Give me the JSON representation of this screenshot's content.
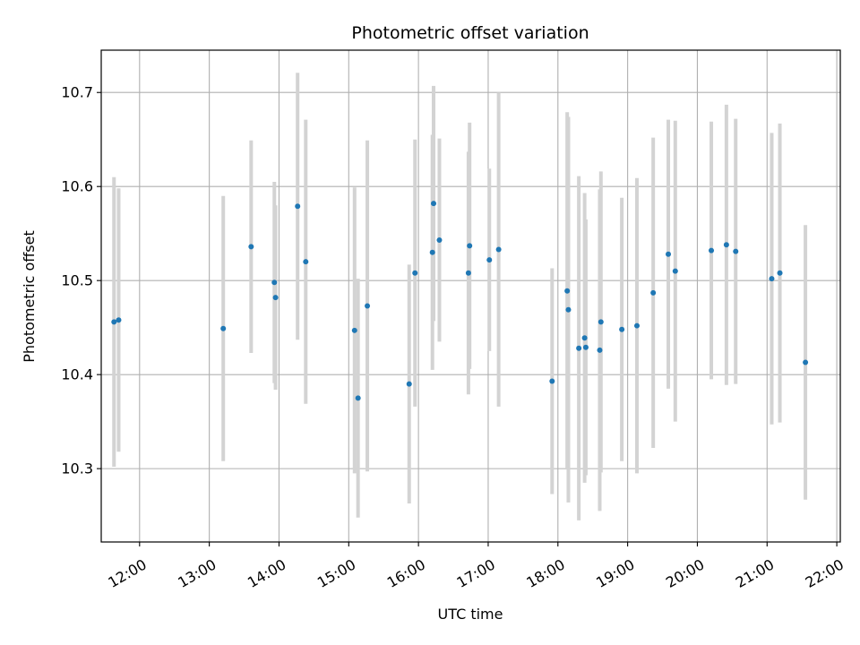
{
  "chart_data": {
    "type": "scatter",
    "title": "Photometric offset variation",
    "xlabel": "UTC time",
    "ylabel": "Photometric offset",
    "grid": true,
    "xlim": [
      "11:27",
      "22:03"
    ],
    "ylim": [
      10.222,
      10.745
    ],
    "x_ticks": [
      "12:00",
      "13:00",
      "14:00",
      "15:00",
      "16:00",
      "17:00",
      "18:00",
      "19:00",
      "20:00",
      "21:00",
      "22:00"
    ],
    "y_ticks": [
      "10.3",
      "10.4",
      "10.5",
      "10.6",
      "10.7"
    ],
    "colors": {
      "point": "#1f77b4",
      "errorbar": "#d3d3d3",
      "grid": "#b0b0b0"
    },
    "points": [
      {
        "x": "11:38",
        "y": 10.456,
        "err": 0.154
      },
      {
        "x": "11:42",
        "y": 10.458,
        "err": 0.14
      },
      {
        "x": "13:12",
        "y": 10.449,
        "err": 0.141
      },
      {
        "x": "13:36",
        "y": 10.536,
        "err": 0.113
      },
      {
        "x": "13:56",
        "y": 10.498,
        "err": 0.107
      },
      {
        "x": "13:57",
        "y": 10.482,
        "err": 0.098
      },
      {
        "x": "14:16",
        "y": 10.579,
        "err": 0.142
      },
      {
        "x": "14:23",
        "y": 10.52,
        "err": 0.151
      },
      {
        "x": "15:05",
        "y": 10.447,
        "err": 0.152
      },
      {
        "x": "15:08",
        "y": 10.375,
        "err": 0.127
      },
      {
        "x": "15:16",
        "y": 10.473,
        "err": 0.176
      },
      {
        "x": "15:52",
        "y": 10.39,
        "err": 0.127
      },
      {
        "x": "15:57",
        "y": 10.508,
        "err": 0.142
      },
      {
        "x": "16:12",
        "y": 10.53,
        "err": 0.125
      },
      {
        "x": "16:13",
        "y": 10.582,
        "err": 0.125
      },
      {
        "x": "16:18",
        "y": 10.543,
        "err": 0.108
      },
      {
        "x": "16:43",
        "y": 10.508,
        "err": 0.129
      },
      {
        "x": "16:44",
        "y": 10.537,
        "err": 0.131
      },
      {
        "x": "17:01",
        "y": 10.522,
        "err": 0.097
      },
      {
        "x": "17:09",
        "y": 10.533,
        "err": 0.167
      },
      {
        "x": "17:55",
        "y": 10.393,
        "err": 0.12
      },
      {
        "x": "18:08",
        "y": 10.489,
        "err": 0.19
      },
      {
        "x": "18:09",
        "y": 10.469,
        "err": 0.205
      },
      {
        "x": "18:18",
        "y": 10.428,
        "err": 0.183
      },
      {
        "x": "18:23",
        "y": 10.439,
        "err": 0.154
      },
      {
        "x": "18:24",
        "y": 10.429,
        "err": 0.136
      },
      {
        "x": "18:36",
        "y": 10.426,
        "err": 0.171
      },
      {
        "x": "18:37",
        "y": 10.456,
        "err": 0.16
      },
      {
        "x": "18:55",
        "y": 10.448,
        "err": 0.14
      },
      {
        "x": "19:08",
        "y": 10.452,
        "err": 0.157
      },
      {
        "x": "19:22",
        "y": 10.487,
        "err": 0.165
      },
      {
        "x": "19:35",
        "y": 10.528,
        "err": 0.143
      },
      {
        "x": "19:41",
        "y": 10.51,
        "err": 0.16
      },
      {
        "x": "20:12",
        "y": 10.532,
        "err": 0.137
      },
      {
        "x": "20:25",
        "y": 10.538,
        "err": 0.149
      },
      {
        "x": "20:33",
        "y": 10.531,
        "err": 0.141
      },
      {
        "x": "21:04",
        "y": 10.502,
        "err": 0.155
      },
      {
        "x": "21:11",
        "y": 10.508,
        "err": 0.159
      },
      {
        "x": "21:33",
        "y": 10.413,
        "err": 0.146
      }
    ]
  }
}
